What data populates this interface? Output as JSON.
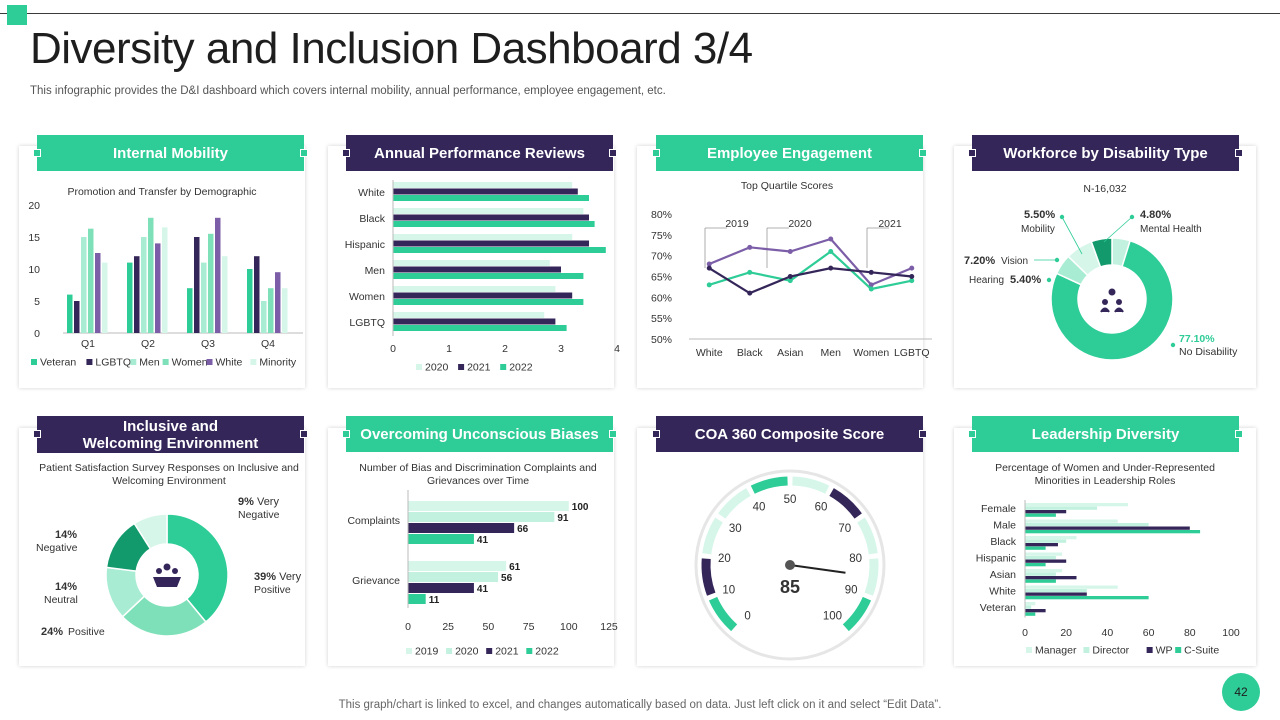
{
  "title": "Diversity and Inclusion Dashboard 3/4",
  "subtitle": "This infographic provides the D&I dashboard which covers internal mobility, annual performance, employee engagement, etc.",
  "footer": "This graph/chart is linked to excel,  and changes automatically based on data. Just left click on it and select “Edit Data”.",
  "page_number": "42",
  "colors": {
    "green": "#2ecc96",
    "purple": "#35265a",
    "violet": "#7b5ea7",
    "light_green": "#a8edd3",
    "pale_green": "#d6f6e9"
  },
  "cards": {
    "mobility": {
      "title": "Internal Mobility",
      "caption": "Promotion  and Transfer by Demographic"
    },
    "performance": {
      "title": "Annual Performance Reviews"
    },
    "engagement": {
      "title": "Employee Engagement",
      "caption": "Top Quartile Scores"
    },
    "disability": {
      "title": "Workforce by Disability Type",
      "caption": "N-16,032",
      "center_icon": "people-icon"
    },
    "inclusive": {
      "title_line1": "Inclusive and",
      "title_line2": "Welcoming Environment",
      "caption": "Patient Satisfaction Survey Responses on Inclusive and Welcoming Environment",
      "center_icon": "group-hands-icon"
    },
    "biases": {
      "title": "Overcoming Unconscious Biases",
      "caption": "Number of Bias and Discrimination Complaints and Grievances over Time"
    },
    "coa": {
      "title": "COA 360 Composite Score"
    },
    "leadership": {
      "title": "Leadership Diversity",
      "caption": "Percentage of Women and Under-Represented Minorities in Leadership Roles"
    }
  },
  "chart_data": [
    {
      "id": "internal-mobility",
      "type": "bar",
      "title": "Promotion  and Transfer by Demographic",
      "categories": [
        "Q1",
        "Q2",
        "Q3",
        "Q4"
      ],
      "ylim": [
        0,
        20
      ],
      "yticks": [
        0,
        5,
        10,
        15,
        20
      ],
      "legend_position": "bottom",
      "series": [
        {
          "name": "Veteran",
          "color": "#2ecc96",
          "values": [
            6,
            11,
            7,
            10
          ]
        },
        {
          "name": "LGBTQ",
          "color": "#35265a",
          "values": [
            5,
            12,
            15,
            12
          ]
        },
        {
          "name": "Men",
          "color": "#a8edd3",
          "values": [
            15,
            15,
            11,
            5
          ]
        },
        {
          "name": "Women",
          "color": "#7ee0b8",
          "values": [
            16.3,
            18,
            15.5,
            7
          ]
        },
        {
          "name": "White",
          "color": "#7b5ea7",
          "values": [
            12.5,
            14,
            18,
            9.5
          ]
        },
        {
          "name": "Minority",
          "color": "#d6f6e9",
          "values": [
            11,
            16.5,
            12,
            7
          ]
        }
      ]
    },
    {
      "id": "annual-performance",
      "type": "bar",
      "orientation": "horizontal",
      "categories": [
        "White",
        "Black",
        "Hispanic",
        "Men",
        "Women",
        "LGBTQ"
      ],
      "xlim": [
        0,
        4
      ],
      "xticks": [
        0,
        1,
        2,
        3,
        4
      ],
      "legend_position": "bottom",
      "series": [
        {
          "name": "2020",
          "color": "#d6f6e9",
          "values": [
            3.2,
            3.4,
            3.2,
            2.8,
            2.9,
            2.7
          ]
        },
        {
          "name": "2021",
          "color": "#35265a",
          "values": [
            3.3,
            3.5,
            3.5,
            3.0,
            3.2,
            2.9
          ]
        },
        {
          "name": "2022",
          "color": "#2ecc96",
          "values": [
            3.5,
            3.6,
            3.8,
            3.4,
            3.4,
            3.1
          ]
        }
      ]
    },
    {
      "id": "employee-engagement",
      "type": "line",
      "title": "Top Quartile Scores",
      "categories": [
        "White",
        "Black",
        "Asian",
        "Men",
        "Women",
        "LGBTQ"
      ],
      "ylim": [
        50,
        80
      ],
      "yticks": [
        "50%",
        "55%",
        "60%",
        "65%",
        "70%",
        "75%",
        "80%"
      ],
      "series": [
        {
          "name": "2019",
          "color": "#7b5ea7",
          "values": [
            68,
            72,
            71,
            74,
            63,
            67
          ]
        },
        {
          "name": "2020",
          "color": "#2ecc96",
          "values": [
            63,
            66,
            64,
            71,
            62,
            64
          ]
        },
        {
          "name": "2021",
          "color": "#35265a",
          "values": [
            67,
            61,
            65,
            67,
            66,
            65
          ]
        }
      ],
      "annotations": [
        "2019",
        "2020",
        "2021"
      ]
    },
    {
      "id": "disability-type",
      "type": "pie",
      "style": "donut",
      "title": "N-16,032",
      "slices": [
        {
          "label": "No Disability",
          "value": 77.1,
          "display": "77.10%",
          "color": "#2ecc96"
        },
        {
          "label": "Hearing",
          "value": 5.4,
          "display": "5.40%",
          "color": "#a8edd3"
        },
        {
          "label": "Vision",
          "value": 7.2,
          "display": "7.20%",
          "color": "#d6f6e9"
        },
        {
          "label": "Mobility",
          "value": 5.5,
          "display": "5.50%",
          "color": "#139a6c"
        },
        {
          "label": "Mental Health",
          "value": 4.8,
          "display": "4.80%",
          "color": "#c2f2df"
        }
      ]
    },
    {
      "id": "inclusive-environment",
      "type": "pie",
      "style": "donut",
      "title": "Patient Satisfaction Survey Responses on Inclusive and Welcoming Environment",
      "slices": [
        {
          "label": "Very Positive",
          "value": 39,
          "display": "39%",
          "color": "#2ecc96"
        },
        {
          "label": "Positive",
          "value": 24,
          "display": "24%",
          "color": "#7ee0b8"
        },
        {
          "label": "Neutral",
          "value": 14,
          "display": "14%",
          "color": "#a8edd3"
        },
        {
          "label": "Negative",
          "value": 14,
          "display": "14%",
          "color": "#139a6c"
        },
        {
          "label": "Very Negative",
          "value": 9,
          "display": "9%",
          "color": "#d6f6e9"
        }
      ]
    },
    {
      "id": "unconscious-biases",
      "type": "bar",
      "orientation": "horizontal",
      "title": "Number of Bias and Discrimination Complaints and Grievances over Time",
      "categories": [
        "Complaints",
        "Grievance"
      ],
      "xlim": [
        0,
        125
      ],
      "xticks": [
        0,
        25,
        50,
        75,
        100,
        125
      ],
      "legend_position": "bottom",
      "series": [
        {
          "name": "2019",
          "color": "#d6f6e9",
          "values": [
            100,
            61
          ]
        },
        {
          "name": "2020",
          "color": "#c2f2df",
          "values": [
            91,
            56
          ]
        },
        {
          "name": "2021",
          "color": "#35265a",
          "values": [
            66,
            41
          ]
        },
        {
          "name": "2022",
          "color": "#2ecc96",
          "values": [
            41,
            11
          ]
        }
      ]
    },
    {
      "id": "coa-360",
      "type": "gauge",
      "value": 85,
      "display": "85",
      "range": [
        0,
        100
      ],
      "ticks": [
        "0",
        "10",
        "20",
        "30",
        "40",
        "50",
        "60",
        "70",
        "80",
        "90",
        "100"
      ]
    },
    {
      "id": "leadership-diversity",
      "type": "bar",
      "orientation": "horizontal",
      "title": "Percentage of Women and Under-Represented Minorities in Leadership Roles",
      "categories": [
        "Female",
        "Male",
        "Black",
        "Hispanic",
        "Asian",
        "White",
        "Veteran"
      ],
      "xlim": [
        0,
        100
      ],
      "xticks": [
        0,
        20,
        40,
        60,
        80,
        100
      ],
      "legend_position": "bottom",
      "series": [
        {
          "name": "Manager",
          "color": "#d6f6e9",
          "values": [
            50,
            45,
            25,
            18,
            18,
            45,
            5
          ]
        },
        {
          "name": "Director",
          "color": "#c2f2df",
          "values": [
            35,
            60,
            20,
            15,
            15,
            30,
            3
          ]
        },
        {
          "name": "WP",
          "color": "#35265a",
          "values": [
            20,
            80,
            16,
            20,
            25,
            30,
            10
          ]
        },
        {
          "name": "C-Suite",
          "color": "#2ecc96",
          "values": [
            15,
            85,
            10,
            10,
            15,
            60,
            5
          ]
        }
      ]
    }
  ]
}
